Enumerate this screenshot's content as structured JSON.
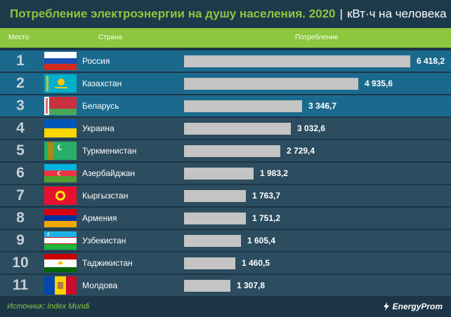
{
  "header": {
    "title": "Потребление электроэнергии на душу населения. 2020",
    "separator": "|",
    "unit": "кВт·ч на человека"
  },
  "columns": {
    "rank": "Место",
    "country": "Страна",
    "value": "Потребление"
  },
  "chart_data": {
    "type": "bar",
    "orientation": "horizontal",
    "title": "Потребление электроэнергии на душу населения. 2020",
    "unit": "кВт·ч на человека",
    "categories": [
      "Россия",
      "Казахстан",
      "Беларусь",
      "Украина",
      "Туркменистан",
      "Азербайджан",
      "Кыргызстан",
      "Армения",
      "Узбекистан",
      "Таджикистан",
      "Молдова"
    ],
    "values": [
      6418.2,
      4935.6,
      3346.7,
      3032.6,
      2729.4,
      1983.2,
      1763.7,
      1751.2,
      1605.4,
      1460.5,
      1307.8
    ],
    "value_labels": [
      "6 418,2",
      "4 935,6",
      "3 346,7",
      "3 032,6",
      "2 729,4",
      "1 983,2",
      "1 763,7",
      "1 751,2",
      "1 605,4",
      "1 460,5",
      "1 307,8"
    ],
    "ranks": [
      "1",
      "2",
      "3",
      "4",
      "5",
      "6",
      "7",
      "8",
      "9",
      "10",
      "11"
    ],
    "flags": [
      "russia-flag-icon",
      "kazakhstan-flag-icon",
      "belarus-flag-icon",
      "ukraine-flag-icon",
      "turkmenistan-flag-icon",
      "azerbaijan-flag-icon",
      "kyrgyzstan-flag-icon",
      "armenia-flag-icon",
      "uzbekistan-flag-icon",
      "tajikistan-flag-icon",
      "moldova-flag-icon"
    ],
    "highlighted_rows": [
      0,
      1,
      2
    ],
    "bar_color": "#c4c4c4",
    "xlim": [
      0,
      6418.2
    ]
  },
  "colors": {
    "accent": "#8dc63f",
    "background": "#1c3647",
    "row_highlight": "#1b6a8e",
    "row_normal": "#2c4c5f"
  },
  "footer": {
    "source": "Источник: Index Mundi",
    "brand": "EnergyProm"
  }
}
